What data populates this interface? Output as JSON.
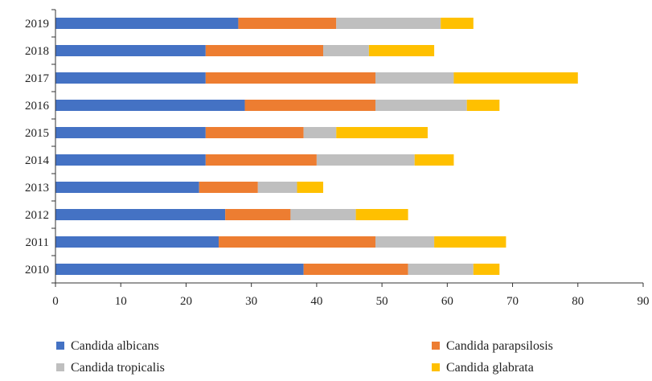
{
  "chart_data": {
    "type": "bar",
    "orientation": "horizontal",
    "stacked": true,
    "categories": [
      "2010",
      "2011",
      "2012",
      "2013",
      "2014",
      "2015",
      "2016",
      "2017",
      "2018",
      "2019"
    ],
    "series": [
      {
        "name": "Candida albicans",
        "color": "#4472C4",
        "values": [
          38,
          25,
          26,
          22,
          23,
          23,
          29,
          23,
          23,
          28
        ]
      },
      {
        "name": "Candida parapsilosis",
        "color": "#ED7D31",
        "values": [
          16,
          24,
          10,
          9,
          17,
          15,
          20,
          26,
          18,
          15
        ]
      },
      {
        "name": "Candida tropicalis",
        "color": "#BFBFBF",
        "values": [
          10,
          9,
          10,
          6,
          15,
          5,
          14,
          12,
          7,
          16
        ]
      },
      {
        "name": "Candida glabrata",
        "color": "#FFC000",
        "values": [
          4,
          11,
          8,
          4,
          6,
          14,
          5,
          19,
          10,
          5
        ]
      }
    ],
    "x_ticks": [
      0,
      10,
      20,
      30,
      40,
      50,
      60,
      70,
      80,
      90
    ],
    "xlim": [
      0,
      90
    ],
    "title": "",
    "xlabel": "",
    "ylabel": "",
    "grid": false,
    "legend_position": "bottom"
  }
}
